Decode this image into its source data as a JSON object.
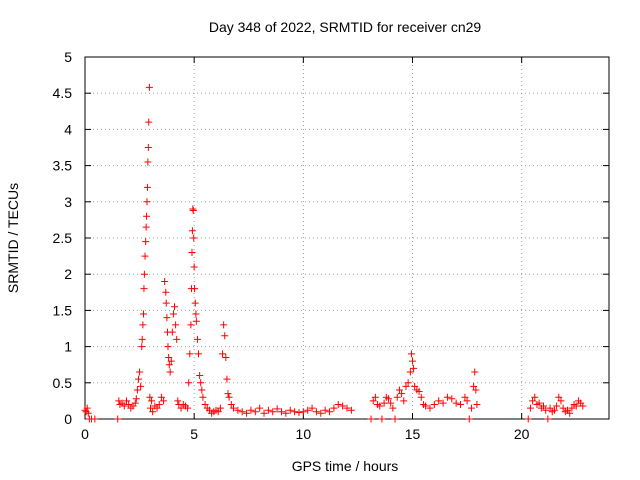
{
  "chart_data": {
    "type": "scatter",
    "title": "Day 348 of 2022, SRMTID for receiver cn29",
    "xlabel": "GPS time / hours",
    "ylabel": "SRMTID / TECUs",
    "xlim": [
      0,
      24
    ],
    "ylim": [
      0,
      5
    ],
    "xticks": [
      0,
      5,
      10,
      15,
      20
    ],
    "yticks": [
      0,
      0.5,
      1,
      1.5,
      2,
      2.5,
      3,
      3.5,
      4,
      4.5,
      5
    ],
    "grid": true,
    "marker": "+",
    "color": "#ff0000",
    "series": [
      {
        "name": "SRMTID",
        "points": [
          [
            0.0,
            0.12
          ],
          [
            0.05,
            0.1
          ],
          [
            0.1,
            0.15
          ],
          [
            0.15,
            0.08
          ],
          [
            0.2,
            0.0
          ],
          [
            0.3,
            0.0
          ],
          [
            0.45,
            0.0
          ],
          [
            1.5,
            0.0
          ],
          [
            1.55,
            0.25
          ],
          [
            1.6,
            0.2
          ],
          [
            1.7,
            0.22
          ],
          [
            1.8,
            0.18
          ],
          [
            1.9,
            0.25
          ],
          [
            2.0,
            0.2
          ],
          [
            2.1,
            0.15
          ],
          [
            2.2,
            0.18
          ],
          [
            2.3,
            0.22
          ],
          [
            2.35,
            0.28
          ],
          [
            2.4,
            0.4
          ],
          [
            2.45,
            0.55
          ],
          [
            2.5,
            0.65
          ],
          [
            2.55,
            0.45
          ],
          [
            2.6,
            1.0
          ],
          [
            2.62,
            1.1
          ],
          [
            2.65,
            1.3
          ],
          [
            2.68,
            1.45
          ],
          [
            2.7,
            1.8
          ],
          [
            2.72,
            2.0
          ],
          [
            2.75,
            2.25
          ],
          [
            2.78,
            2.45
          ],
          [
            2.8,
            2.65
          ],
          [
            2.82,
            2.8
          ],
          [
            2.84,
            3.0
          ],
          [
            2.86,
            3.2
          ],
          [
            2.88,
            3.55
          ],
          [
            2.9,
            3.75
          ],
          [
            2.92,
            4.1
          ],
          [
            2.95,
            4.58
          ],
          [
            2.97,
            0.3
          ],
          [
            3.0,
            0.15
          ],
          [
            3.05,
            0.25
          ],
          [
            3.1,
            0.1
          ],
          [
            3.2,
            0.18
          ],
          [
            3.3,
            0.15
          ],
          [
            3.4,
            0.2
          ],
          [
            3.5,
            0.3
          ],
          [
            3.6,
            0.25
          ],
          [
            3.65,
            1.9
          ],
          [
            3.7,
            1.75
          ],
          [
            3.72,
            1.6
          ],
          [
            3.75,
            1.4
          ],
          [
            3.78,
            1.2
          ],
          [
            3.8,
            1.0
          ],
          [
            3.83,
            0.85
          ],
          [
            3.86,
            0.75
          ],
          [
            3.9,
            0.65
          ],
          [
            3.95,
            0.8
          ],
          [
            4.0,
            1.2
          ],
          [
            4.05,
            1.45
          ],
          [
            4.1,
            1.55
          ],
          [
            4.15,
            1.3
          ],
          [
            4.2,
            1.1
          ],
          [
            4.25,
            0.25
          ],
          [
            4.3,
            0.2
          ],
          [
            4.4,
            0.15
          ],
          [
            4.5,
            0.2
          ],
          [
            4.6,
            0.18
          ],
          [
            4.7,
            0.15
          ],
          [
            4.75,
            0.5
          ],
          [
            4.8,
            0.9
          ],
          [
            4.85,
            1.3
          ],
          [
            4.88,
            1.8
          ],
          [
            4.9,
            2.3
          ],
          [
            4.92,
            2.6
          ],
          [
            4.94,
            2.9
          ],
          [
            4.96,
            2.88
          ],
          [
            4.98,
            2.5
          ],
          [
            5.0,
            2.1
          ],
          [
            5.02,
            1.8
          ],
          [
            5.05,
            1.6
          ],
          [
            5.08,
            1.45
          ],
          [
            5.1,
            1.35
          ],
          [
            5.15,
            1.1
          ],
          [
            5.2,
            0.9
          ],
          [
            5.25,
            0.6
          ],
          [
            5.3,
            0.5
          ],
          [
            5.35,
            0.4
          ],
          [
            5.4,
            0.3
          ],
          [
            5.5,
            0.2
          ],
          [
            5.6,
            0.15
          ],
          [
            5.7,
            0.12
          ],
          [
            5.8,
            0.08
          ],
          [
            5.9,
            0.1
          ],
          [
            6.0,
            0.12
          ],
          [
            6.1,
            0.1
          ],
          [
            6.2,
            0.15
          ],
          [
            6.3,
            0.9
          ],
          [
            6.35,
            1.3
          ],
          [
            6.4,
            1.15
          ],
          [
            6.45,
            0.85
          ],
          [
            6.5,
            0.55
          ],
          [
            6.55,
            0.35
          ],
          [
            6.6,
            0.3
          ],
          [
            6.7,
            0.2
          ],
          [
            6.8,
            0.15
          ],
          [
            7.0,
            0.12
          ],
          [
            7.2,
            0.1
          ],
          [
            7.4,
            0.08
          ],
          [
            7.6,
            0.12
          ],
          [
            7.8,
            0.1
          ],
          [
            8.0,
            0.15
          ],
          [
            8.2,
            0.08
          ],
          [
            8.4,
            0.12
          ],
          [
            8.6,
            0.1
          ],
          [
            8.8,
            0.14
          ],
          [
            9.0,
            0.1
          ],
          [
            9.2,
            0.08
          ],
          [
            9.4,
            0.12
          ],
          [
            9.6,
            0.1
          ],
          [
            9.8,
            0.09
          ],
          [
            10.0,
            0.1
          ],
          [
            10.2,
            0.12
          ],
          [
            10.4,
            0.15
          ],
          [
            10.6,
            0.1
          ],
          [
            10.8,
            0.08
          ],
          [
            11.0,
            0.12
          ],
          [
            11.2,
            0.1
          ],
          [
            11.4,
            0.15
          ],
          [
            11.6,
            0.2
          ],
          [
            11.8,
            0.18
          ],
          [
            12.0,
            0.15
          ],
          [
            12.2,
            0.12
          ],
          [
            13.1,
            0.0
          ],
          [
            13.2,
            0.25
          ],
          [
            13.3,
            0.3
          ],
          [
            13.4,
            0.2
          ],
          [
            13.5,
            0.18
          ],
          [
            13.6,
            0.0
          ],
          [
            13.7,
            0.22
          ],
          [
            13.8,
            0.3
          ],
          [
            13.9,
            0.28
          ],
          [
            14.0,
            0.22
          ],
          [
            14.1,
            0.15
          ],
          [
            14.2,
            0.0
          ],
          [
            14.3,
            0.3
          ],
          [
            14.4,
            0.4
          ],
          [
            14.5,
            0.35
          ],
          [
            14.6,
            0.25
          ],
          [
            14.7,
            0.45
          ],
          [
            14.8,
            0.5
          ],
          [
            14.9,
            0.65
          ],
          [
            14.95,
            0.9
          ],
          [
            15.0,
            0.8
          ],
          [
            15.05,
            0.7
          ],
          [
            15.1,
            0.45
          ],
          [
            15.2,
            0.4
          ],
          [
            15.3,
            0.38
          ],
          [
            15.4,
            0.3
          ],
          [
            15.5,
            0.2
          ],
          [
            15.6,
            0.18
          ],
          [
            15.8,
            0.15
          ],
          [
            16.0,
            0.2
          ],
          [
            16.2,
            0.25
          ],
          [
            16.4,
            0.22
          ],
          [
            16.6,
            0.3
          ],
          [
            16.8,
            0.28
          ],
          [
            17.0,
            0.22
          ],
          [
            17.2,
            0.2
          ],
          [
            17.4,
            0.3
          ],
          [
            17.5,
            0.25
          ],
          [
            17.6,
            0.0
          ],
          [
            17.7,
            0.15
          ],
          [
            17.8,
            0.45
          ],
          [
            17.85,
            0.65
          ],
          [
            17.9,
            0.4
          ],
          [
            17.95,
            0.2
          ],
          [
            20.3,
            0.0
          ],
          [
            20.4,
            0.15
          ],
          [
            20.5,
            0.25
          ],
          [
            20.6,
            0.3
          ],
          [
            20.7,
            0.2
          ],
          [
            20.8,
            0.22
          ],
          [
            20.9,
            0.15
          ],
          [
            21.0,
            0.18
          ],
          [
            21.1,
            0.12
          ],
          [
            21.2,
            0.0
          ],
          [
            21.3,
            0.15
          ],
          [
            21.4,
            0.1
          ],
          [
            21.5,
            0.12
          ],
          [
            21.6,
            0.18
          ],
          [
            21.7,
            0.3
          ],
          [
            21.8,
            0.25
          ],
          [
            21.9,
            0.15
          ],
          [
            22.0,
            0.1
          ],
          [
            22.1,
            0.12
          ],
          [
            22.2,
            0.08
          ],
          [
            22.3,
            0.15
          ],
          [
            22.4,
            0.2
          ],
          [
            22.5,
            0.18
          ],
          [
            22.6,
            0.25
          ],
          [
            22.7,
            0.22
          ],
          [
            22.8,
            0.18
          ]
        ]
      }
    ]
  }
}
